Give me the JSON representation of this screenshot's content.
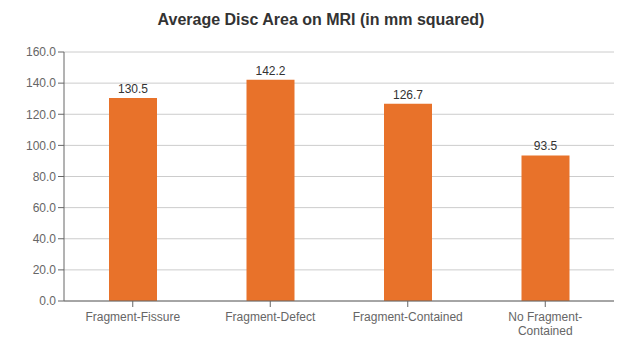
{
  "chart_data": {
    "type": "bar",
    "title": "Average Disc Area on MRI (in mm squared)",
    "categories": [
      "Fragment-Fissure",
      "Fragment-Defect",
      "Fragment-Contained",
      "No Fragment-\nContained"
    ],
    "values": [
      130.5,
      142.2,
      126.7,
      93.5
    ],
    "color": "#E8722A",
    "ylim": [
      0,
      160
    ],
    "yticks": [
      {
        "value": 0,
        "label": "0.0"
      },
      {
        "value": 20,
        "label": "20.0"
      },
      {
        "value": 40,
        "label": "40.0"
      },
      {
        "value": 60,
        "label": "60.0"
      },
      {
        "value": 80,
        "label": "80.0"
      },
      {
        "value": 100,
        "label": "100.0"
      },
      {
        "value": 120,
        "label": "120.0"
      },
      {
        "value": 140,
        "label": "140.0"
      },
      {
        "value": 160,
        "label": "160.0"
      }
    ],
    "grid": true,
    "data_labels": true
  }
}
